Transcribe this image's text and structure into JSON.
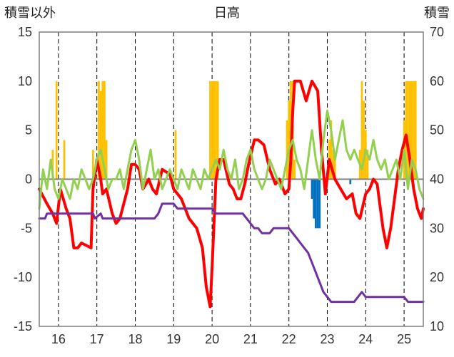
{
  "chart_data": {
    "type": "bar+line",
    "title": "日高",
    "ylabel_left": "積雪以外",
    "ylabel_right": "積雪",
    "x_ticks": [
      "16",
      "17",
      "18",
      "19",
      "20",
      "21",
      "22",
      "23",
      "24",
      "25"
    ],
    "xlim": [
      15.5,
      25.5
    ],
    "ylim_left": [
      -15,
      15
    ],
    "ylim_right": [
      10,
      70
    ],
    "y_ticks_left": [
      15,
      10,
      5,
      0,
      -5,
      -10,
      -15
    ],
    "y_ticks_right": [
      70,
      60,
      50,
      40,
      30,
      20,
      10
    ],
    "grid": true,
    "colors": {
      "series_red": "#ff0000",
      "series_green": "#92d050",
      "series_purple": "#7030a0",
      "bars_positive": "#ffc000",
      "bars_negative": "#0070c0",
      "axis": "#7f7f7f",
      "grid": "#000000"
    },
    "series": [
      {
        "axis": "left",
        "color": "#ff0000",
        "x": [
          15.5,
          15.7,
          15.85,
          15.95,
          16.05,
          16.2,
          16.3,
          16.4,
          16.5,
          16.6,
          16.85,
          16.9,
          17.0,
          17.1,
          17.15,
          17.25,
          17.4,
          17.5,
          17.6,
          17.8,
          17.9,
          18.0,
          18.1,
          18.2,
          18.35,
          18.45,
          18.55,
          18.7,
          18.9,
          19.0,
          19.2,
          19.4,
          19.6,
          19.75,
          19.85,
          19.95,
          20.0,
          20.1,
          20.2,
          20.3,
          20.45,
          20.55,
          20.65,
          20.75,
          20.85,
          20.95,
          21.1,
          21.2,
          21.35,
          21.5,
          21.65,
          21.75,
          21.9,
          22.0,
          22.05,
          22.1,
          22.15,
          22.3,
          22.45,
          22.6,
          22.75,
          22.85,
          22.95,
          23.05,
          23.2,
          23.35,
          23.5,
          23.65,
          23.75,
          23.85,
          24.0,
          24.1,
          24.2,
          24.3,
          24.45,
          24.55,
          24.65,
          24.75,
          24.85,
          24.95,
          25.05,
          25.15,
          25.25,
          25.35,
          25.45,
          25.5
        ],
        "values": [
          -1,
          -2.5,
          -3.5,
          -4.5,
          -1,
          -3,
          -4,
          -7,
          -7,
          -6.5,
          -7,
          -1,
          2,
          0,
          -1.5,
          -1,
          -3.5,
          -4.5,
          -4,
          -1,
          1.5,
          1.5,
          1,
          -1,
          0,
          -1,
          -1.5,
          1,
          0.5,
          -1,
          -2,
          -4,
          -5,
          -7,
          -11,
          -13,
          -9,
          0,
          2,
          2,
          -0.5,
          -1,
          -2,
          -2,
          -0.5,
          1.5,
          4,
          4,
          3.5,
          1,
          -0.5,
          0,
          -1.5,
          -1,
          2,
          7,
          10,
          10,
          8,
          10,
          9,
          3,
          -1.5,
          2,
          0,
          -1,
          -2,
          -1.5,
          -3.5,
          -4,
          -1.5,
          -1,
          0,
          -0.5,
          -5,
          -7,
          -5,
          -2,
          1,
          3,
          4.5,
          2,
          -1,
          -3,
          -4,
          -3
        ]
      },
      {
        "axis": "left",
        "color": "#92d050",
        "x": [
          15.5,
          15.6,
          15.7,
          15.8,
          15.9,
          16.0,
          16.1,
          16.2,
          16.3,
          16.4,
          16.5,
          16.6,
          16.7,
          16.8,
          16.9,
          17.0,
          17.1,
          17.2,
          17.3,
          17.4,
          17.5,
          17.6,
          17.7,
          17.8,
          17.9,
          18.0,
          18.1,
          18.2,
          18.3,
          18.4,
          18.5,
          18.6,
          18.7,
          18.8,
          18.9,
          19.0,
          19.1,
          19.2,
          19.3,
          19.4,
          19.5,
          19.6,
          19.7,
          19.8,
          19.9,
          20.0,
          20.1,
          20.2,
          20.3,
          20.4,
          20.5,
          20.6,
          20.7,
          20.8,
          20.9,
          21.0,
          21.1,
          21.2,
          21.3,
          21.4,
          21.5,
          21.6,
          21.7,
          21.8,
          21.9,
          22.0,
          22.1,
          22.2,
          22.3,
          22.4,
          22.5,
          22.6,
          22.7,
          22.8,
          22.9,
          23.0,
          23.1,
          23.2,
          23.3,
          23.4,
          23.5,
          23.6,
          23.7,
          23.8,
          23.9,
          24.0,
          24.1,
          24.2,
          24.3,
          24.4,
          24.5,
          24.6,
          24.7,
          24.8,
          24.9,
          25.0,
          25.1,
          25.2,
          25.3,
          25.4,
          25.5
        ],
        "values": [
          -3,
          1,
          -1,
          2,
          -1,
          -2,
          0,
          -1,
          -2,
          0,
          -1,
          1,
          0,
          -1,
          0,
          2,
          3,
          1,
          -1,
          0,
          0,
          1,
          -1,
          1,
          3,
          4,
          2,
          -1,
          1,
          3,
          0,
          1,
          -1,
          0,
          1,
          0,
          -1,
          1,
          0,
          -1,
          1,
          0,
          -1,
          1,
          0,
          1,
          2,
          1,
          3,
          1,
          0,
          2,
          -1,
          0,
          2,
          3,
          1,
          0,
          -1,
          0,
          2,
          1,
          0,
          -1,
          1,
          3,
          4,
          2,
          1,
          -1,
          2,
          5,
          2,
          0,
          4,
          7,
          5,
          2,
          4,
          6,
          3,
          2,
          3,
          2,
          1,
          3,
          2,
          4,
          2,
          1,
          2,
          0,
          1,
          2,
          0,
          3,
          -1,
          2,
          1,
          -1,
          -2
        ]
      },
      {
        "axis": "right",
        "color": "#7030a0",
        "x": [
          15.5,
          15.65,
          15.7,
          16.1,
          16.9,
          16.95,
          17.1,
          17.15,
          18.0,
          18.1,
          18.5,
          18.6,
          18.7,
          19.0,
          19.1,
          19.3,
          20.0,
          20.1,
          20.8,
          20.9,
          21.0,
          21.1,
          21.2,
          21.3,
          21.5,
          21.6,
          22.0,
          22.2,
          22.4,
          22.5,
          22.6,
          22.7,
          22.8,
          22.9,
          23.0,
          23.1,
          23.6,
          23.7,
          23.8,
          23.9,
          24.0,
          24.2,
          24.4,
          24.6,
          25.0,
          25.1,
          25.5
        ],
        "values": [
          32,
          32,
          33,
          33,
          33,
          32,
          33,
          32,
          32,
          32,
          32,
          33,
          35,
          35,
          34,
          34,
          34,
          33,
          33,
          32,
          31,
          30,
          30,
          29,
          29,
          30,
          30,
          28,
          26,
          25,
          23,
          21,
          19,
          17,
          16,
          15,
          15,
          15,
          16,
          17,
          16,
          16,
          16,
          16,
          16,
          15,
          15
        ]
      }
    ],
    "bars": {
      "axis": "left",
      "x": [
        15.85,
        15.95,
        16.15,
        16.9,
        17.05,
        17.1,
        17.15,
        17.2,
        17.25,
        19.05,
        19.95,
        20.0,
        20.05,
        20.1,
        20.15,
        21.95,
        22.0,
        22.05,
        22.1,
        22.15,
        22.6,
        22.65,
        22.7,
        22.75,
        22.8,
        23.05,
        23.1,
        23.15,
        23.2,
        23.6,
        23.85,
        23.9,
        23.95,
        24.0,
        24.05,
        25.0,
        25.05,
        25.1,
        25.15,
        25.2,
        25.25,
        25.3
      ],
      "values": [
        3,
        10,
        4,
        3,
        10,
        9,
        10,
        10,
        4,
        5,
        10,
        10,
        10,
        10,
        10,
        6,
        8,
        10,
        10,
        2,
        -2,
        -4,
        -5,
        -5,
        -5,
        4,
        6,
        3,
        2,
        -0.5,
        3,
        10,
        8,
        5,
        3,
        6,
        10,
        10,
        10,
        10,
        10,
        10
      ]
    }
  },
  "header": {
    "left_label": "積雪以外",
    "title": "日高",
    "right_label": "積雪"
  }
}
